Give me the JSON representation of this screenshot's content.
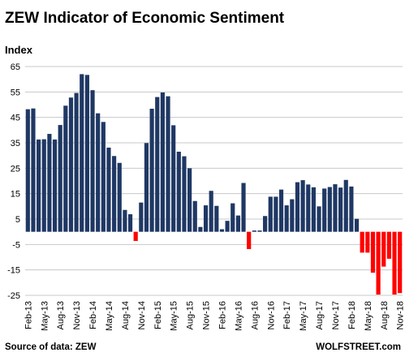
{
  "chart_data": {
    "type": "bar",
    "title": "ZEW Indicator of Economic Sentiment",
    "ylabel": "Index",
    "ylim": [
      -25,
      65
    ],
    "yticks": [
      -25,
      -15,
      -5,
      5,
      15,
      25,
      35,
      45,
      55,
      65
    ],
    "grid": true,
    "categories": [
      "Feb-13",
      "Mar-13",
      "Apr-13",
      "May-13",
      "Jun-13",
      "Jul-13",
      "Aug-13",
      "Sep-13",
      "Oct-13",
      "Nov-13",
      "Dec-13",
      "Jan-14",
      "Feb-14",
      "Mar-14",
      "Apr-14",
      "May-14",
      "Jun-14",
      "Jul-14",
      "Aug-14",
      "Sep-14",
      "Oct-14",
      "Nov-14",
      "Dec-14",
      "Jan-15",
      "Feb-15",
      "Mar-15",
      "Apr-15",
      "May-15",
      "Jun-15",
      "Jul-15",
      "Aug-15",
      "Sep-15",
      "Oct-15",
      "Nov-15",
      "Dec-15",
      "Jan-16",
      "Feb-16",
      "Mar-16",
      "Apr-16",
      "May-16",
      "Jun-16",
      "Jul-16",
      "Aug-16",
      "Sep-16",
      "Oct-16",
      "Nov-16",
      "Dec-16",
      "Jan-17",
      "Feb-17",
      "Mar-17",
      "Apr-17",
      "May-17",
      "Jun-17",
      "Jul-17",
      "Aug-17",
      "Sep-17",
      "Oct-17",
      "Nov-17",
      "Dec-17",
      "Jan-18",
      "Feb-18",
      "Mar-18",
      "Apr-18",
      "May-18",
      "Jun-18",
      "Jul-18",
      "Aug-18",
      "Sep-18",
      "Oct-18",
      "Nov-18"
    ],
    "xtick_labels": [
      "Feb-13",
      "May-13",
      "Aug-13",
      "Nov-13",
      "Feb-14",
      "May-14",
      "Aug-14",
      "Nov-14",
      "Feb-15",
      "May-15",
      "Aug-15",
      "Nov-15",
      "Feb-16",
      "May-16",
      "Aug-16",
      "Nov-16",
      "Feb-17",
      "May-17",
      "Aug-17",
      "Nov-17",
      "Feb-18",
      "May-18",
      "Aug-18",
      "Nov-18"
    ],
    "values": [
      48.2,
      48.5,
      36.3,
      36.4,
      38.5,
      36.3,
      42.0,
      49.6,
      52.8,
      54.6,
      62.0,
      61.7,
      55.7,
      46.6,
      43.2,
      33.1,
      29.8,
      27.1,
      8.6,
      6.9,
      -3.6,
      11.5,
      34.9,
      48.4,
      53.0,
      54.8,
      53.3,
      41.9,
      31.5,
      29.7,
      25.0,
      12.1,
      1.9,
      10.4,
      16.1,
      10.2,
      1.0,
      4.3,
      11.2,
      6.4,
      19.2,
      -6.8,
      0.5,
      0.5,
      6.2,
      13.8,
      13.8,
      16.6,
      10.4,
      12.8,
      19.5,
      20.3,
      18.6,
      17.5,
      10.0,
      17.0,
      17.6,
      18.7,
      17.4,
      20.4,
      17.8,
      5.1,
      -8.2,
      -8.2,
      -16.1,
      -24.7,
      -13.7,
      -10.6,
      -24.7,
      -24.1
    ],
    "colors": {
      "positive": "#1f3864",
      "negative": "#ff0000"
    },
    "source": "Source of data: ZEW",
    "brand": "WOLFSTREET.com"
  }
}
